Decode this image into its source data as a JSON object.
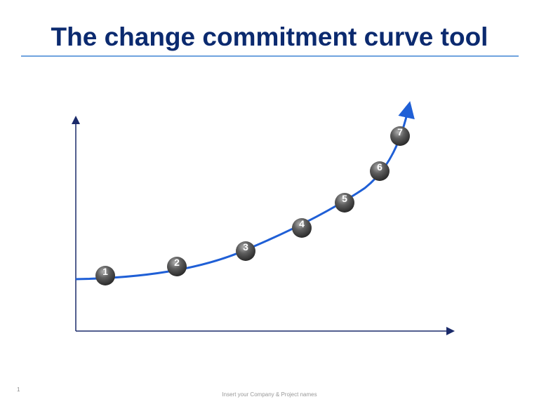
{
  "slide": {
    "title": "The change commitment curve tool",
    "page_number": "1",
    "footer": "Insert your Company & Project names"
  },
  "diagram": {
    "curve_color": "#1f5fd6",
    "axis_color": "#1a2a6a",
    "stages": [
      "1",
      "2",
      "3",
      "4",
      "5",
      "6",
      "7"
    ]
  }
}
